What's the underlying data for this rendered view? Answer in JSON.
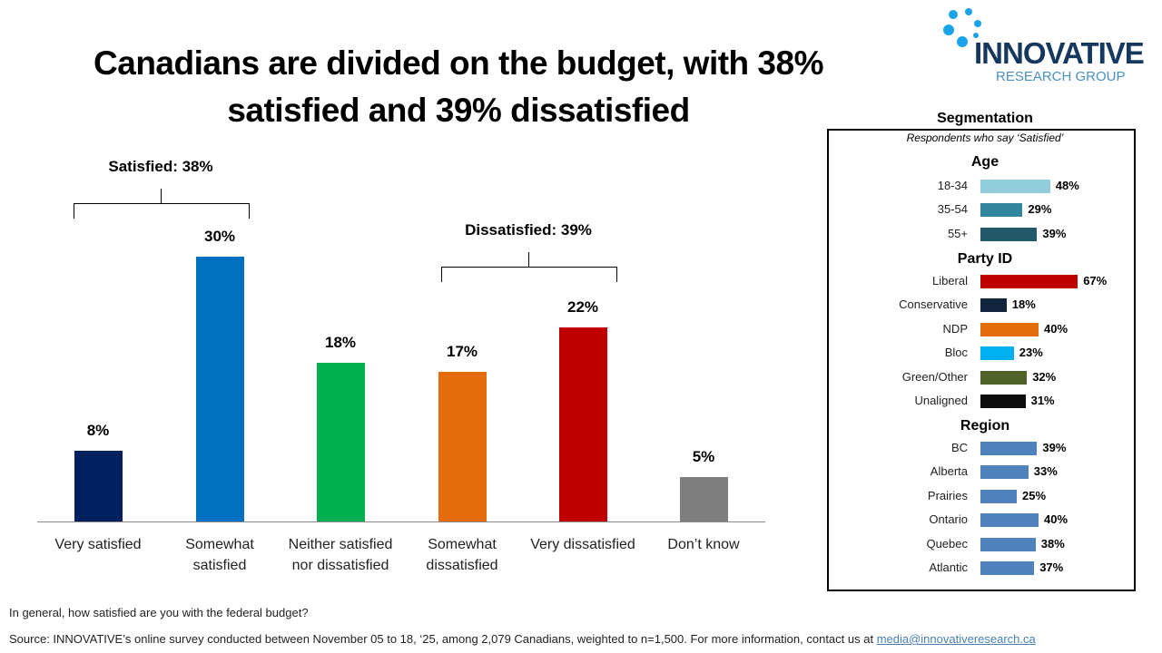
{
  "title": "Canadians are divided on the budget, with 38% satisfied and 39% dissatisfied",
  "logo": {
    "name": "INNOVATIVE",
    "sub": "RESEARCH GROUP",
    "colors": {
      "dots": "#1aa3e8",
      "name": "#16385e",
      "sub": "#4a90c2"
    }
  },
  "chart_data": [
    {
      "type": "bar",
      "ylim": [
        0,
        30
      ],
      "categories": [
        "Very satisfied",
        "Somewhat satisfied",
        "Neither satisfied nor dissatisfied",
        "Somewhat dissatisfied",
        "Very dissatisfied",
        "Don’t know"
      ],
      "values": [
        8,
        30,
        18,
        17,
        22,
        5
      ],
      "labels": [
        "8%",
        "30%",
        "18%",
        "17%",
        "22%",
        "5%"
      ],
      "colors": [
        "#002060",
        "#0070c0",
        "#00b050",
        "#e46c0a",
        "#c00000",
        "#7f7f7f"
      ],
      "annotations": [
        {
          "text": "Satisfied: 38%",
          "span": [
            0,
            1
          ]
        },
        {
          "text": "Dissatisfied: 39%",
          "span": [
            3,
            4
          ]
        }
      ]
    },
    {
      "type": "bar",
      "orientation": "horizontal",
      "title": "Segmentation",
      "subtitle": "Respondents who say ‘Satisfied’",
      "groups": [
        {
          "name": "Age",
          "items": [
            {
              "label": "18-34",
              "value": 48,
              "color": "#92cddc"
            },
            {
              "label": "35-54",
              "value": 29,
              "color": "#31859c"
            },
            {
              "label": "55+",
              "value": 39,
              "color": "#215968"
            }
          ]
        },
        {
          "name": "Party ID",
          "items": [
            {
              "label": "Liberal",
              "value": 67,
              "color": "#c00000"
            },
            {
              "label": "Conservative",
              "value": 18,
              "color": "#10243e"
            },
            {
              "label": "NDP",
              "value": 40,
              "color": "#e46c0a"
            },
            {
              "label": "Bloc",
              "value": 23,
              "color": "#00b0f0"
            },
            {
              "label": "Green/Other",
              "value": 32,
              "color": "#4f6228"
            },
            {
              "label": "Unaligned",
              "value": 31,
              "color": "#0d0d0d"
            }
          ]
        },
        {
          "name": "Region",
          "items": [
            {
              "label": "BC",
              "value": 39,
              "color": "#4f81bd"
            },
            {
              "label": "Alberta",
              "value": 33,
              "color": "#4f81bd"
            },
            {
              "label": "Prairies",
              "value": 25,
              "color": "#4f81bd"
            },
            {
              "label": "Ontario",
              "value": 40,
              "color": "#4f81bd"
            },
            {
              "label": "Quebec",
              "value": 38,
              "color": "#4f81bd"
            },
            {
              "label": "Atlantic",
              "value": 37,
              "color": "#4f81bd"
            }
          ]
        }
      ]
    }
  ],
  "footer": {
    "question": "In general, how satisfied are you with the federal budget?",
    "source": "Source: INNOVATIVE’s online survey conducted between November 05 to 18, ‘25, among 2,079 Canadians, weighted to n=1,500. For more information, contact us at ",
    "email": "media@innovativeresearch.ca"
  }
}
